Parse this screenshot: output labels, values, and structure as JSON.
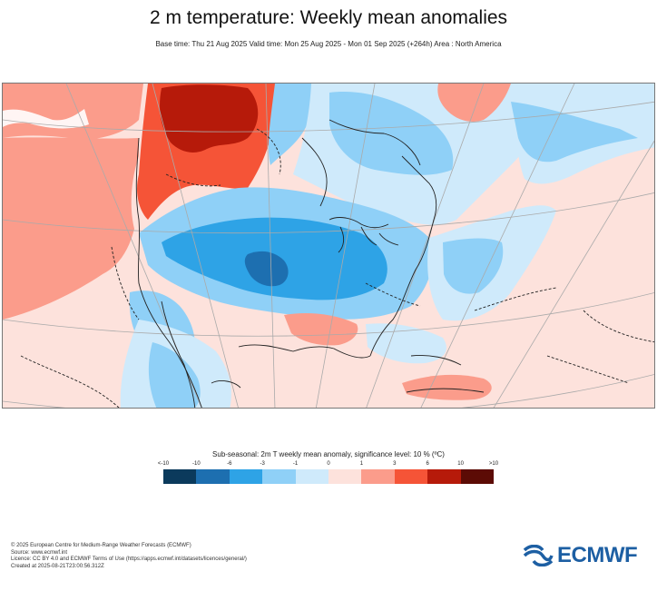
{
  "header": {
    "title": "2 m temperature: Weekly mean anomalies",
    "subtitle": "Base time: Thu 21 Aug 2025 Valid time: Mon 25 Aug 2025 - Mon 01 Sep 2025 (+264h) Area : North America"
  },
  "legend": {
    "title": "Sub-seasonal: 2m T weekly mean anomaly, significance level: 10 % (ºC)",
    "labels": [
      "<-10",
      "-10",
      "-6",
      "-3",
      "-1",
      "0",
      "1",
      "3",
      "6",
      "10",
      ">10"
    ],
    "colors": [
      "#0b3a5c",
      "#1d6fb0",
      "#2ea3e6",
      "#8fd0f7",
      "#cfeafb",
      "#fde2dc",
      "#fb9c8b",
      "#f55437",
      "#b61a0a",
      "#5c0b05"
    ]
  },
  "footer": {
    "lines": [
      "© 2025 European Centre for Medium-Range Weather Forecasts (ECMWF)",
      "Source: www.ecmwf.int",
      "Licence: CC BY 4.0 and ECMWF Terms of Use (https://apps.ecmwf.int/datasets/licences/general/)",
      "Created at 2025-08-21T23:00:56.312Z"
    ]
  },
  "logo": {
    "text": "ECMWF"
  },
  "map": {
    "area": "North America",
    "palette": {
      "warm_light": "#fde2dc",
      "warm_mid": "#fb9c8b",
      "warm_strong": "#f55437",
      "warm_dark": "#b61a0a",
      "cool_light": "#cfeafb",
      "cool_mid": "#8fd0f7",
      "cool_strong": "#2ea3e6",
      "cool_dark": "#1d6fb0"
    }
  }
}
